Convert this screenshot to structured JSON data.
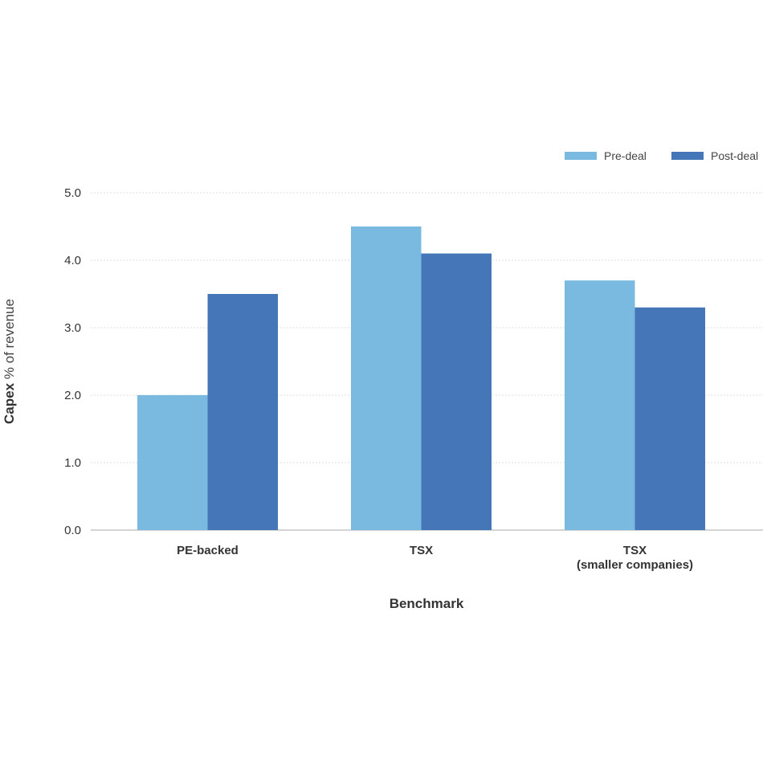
{
  "chart_data": {
    "type": "bar",
    "title": "",
    "xlabel": "Benchmark",
    "ylabel_bold": "Capex",
    "ylabel_rest": " % of revenue",
    "categories": [
      [
        "PE-backed"
      ],
      [
        "TSX"
      ],
      [
        "TSX",
        "(smaller companies)"
      ]
    ],
    "series": [
      {
        "name": "Pre-deal",
        "color": "#7ab9e0",
        "values": [
          2.0,
          4.5,
          3.7
        ]
      },
      {
        "name": "Post-deal",
        "color": "#4577b8",
        "values": [
          3.5,
          4.1,
          3.3
        ]
      }
    ],
    "ylim": [
      0,
      5
    ],
    "yticks": [
      "0.0",
      "1.0",
      "2.0",
      "3.0",
      "4.0",
      "5.0"
    ],
    "grid": true,
    "legend_position": "top-right"
  }
}
